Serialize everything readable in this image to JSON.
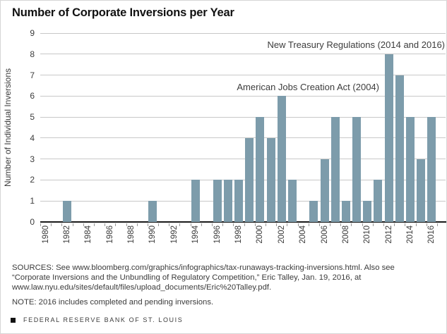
{
  "title": "Number of Corporate Inversions per Year",
  "chart_data": {
    "type": "bar",
    "title": "Number of Corporate Inversions per Year",
    "xlabel": "",
    "ylabel": "Number of Individual Inversions",
    "ylim": [
      0,
      9
    ],
    "ytick_step": 1,
    "xtick_label_step": 2,
    "grid": true,
    "legend_position": "none",
    "bar_color": "#7d9cab",
    "gridline_color": "#c8c8c8",
    "axis_color": "#1a1a1a",
    "categories": [
      "1980",
      "1981",
      "1982",
      "1983",
      "1984",
      "1985",
      "1986",
      "1987",
      "1988",
      "1989",
      "1990",
      "1991",
      "1992",
      "1993",
      "1994",
      "1995",
      "1996",
      "1997",
      "1998",
      "1999",
      "2000",
      "2001",
      "2002",
      "2003",
      "2004",
      "2005",
      "2006",
      "2007",
      "2008",
      "2009",
      "2010",
      "2011",
      "2012",
      "2013",
      "2014",
      "2015",
      "2016"
    ],
    "values": [
      0,
      0,
      1,
      0,
      0,
      0,
      0,
      0,
      0,
      0,
      1,
      0,
      0,
      0,
      2,
      0,
      2,
      2,
      2,
      4,
      5,
      4,
      6,
      2,
      0,
      1,
      3,
      5,
      1,
      5,
      1,
      2,
      8,
      7,
      5,
      3,
      5
    ],
    "annotations": [
      "New Treasury Regulations (2014 and 2016)",
      "American Jobs Creation Act (2004)"
    ]
  },
  "footer": {
    "sources_lines": [
      "SOURCES: See www.bloomberg.com/graphics/infographics/tax-runaways-tracking-inversions.html. Also see",
      "“Corporate Inversions and the Unbundling of Regulatory Competition,” Eric Talley, Jan. 19, 2016, at",
      "www.law.nyu.edu/sites/default/files/upload_documents/Eric%20Talley.pdf."
    ],
    "note": "NOTE: 2016 includes completed and pending inversions.",
    "branding": "FEDERAL RESERVE BANK OF ST. LOUIS"
  }
}
